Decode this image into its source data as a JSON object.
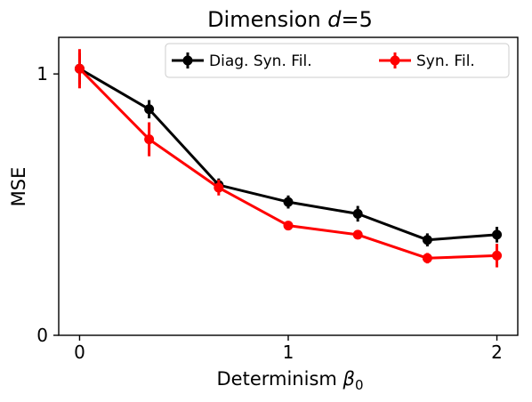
{
  "chart_data": {
    "type": "line",
    "title_prefix": "Dimension ",
    "title_var": "d",
    "title_suffix": "=5",
    "xlabel_prefix": "Determinism ",
    "xlabel_var": "β",
    "xlabel_sub": "0",
    "ylabel": "MSE",
    "x": [
      0,
      0.3333,
      0.6667,
      1,
      1.3333,
      1.6667,
      2
    ],
    "xlim": [
      -0.1,
      2.1
    ],
    "ylim": [
      0,
      1.14
    ],
    "xticks": [
      0,
      1,
      2
    ],
    "xtick_labels": [
      "0",
      "1",
      "2"
    ],
    "yticks": [
      0,
      1
    ],
    "ytick_labels": [
      "0",
      "1"
    ],
    "grid": false,
    "legend_position": "top-right",
    "series": [
      {
        "name": "Diag. Syn. Fil.",
        "color": "#000000",
        "values": [
          1.02,
          0.865,
          0.575,
          0.51,
          0.465,
          0.365,
          0.385
        ],
        "errors": [
          0.06,
          0.035,
          0.025,
          0.025,
          0.03,
          0.025,
          0.03
        ]
      },
      {
        "name": "Syn. Fil.",
        "color": "#ff0000",
        "values": [
          1.02,
          0.75,
          0.565,
          0.42,
          0.385,
          0.295,
          0.305
        ],
        "errors": [
          0.075,
          0.065,
          0.03,
          0.01,
          0.015,
          0.02,
          0.045
        ]
      }
    ]
  }
}
